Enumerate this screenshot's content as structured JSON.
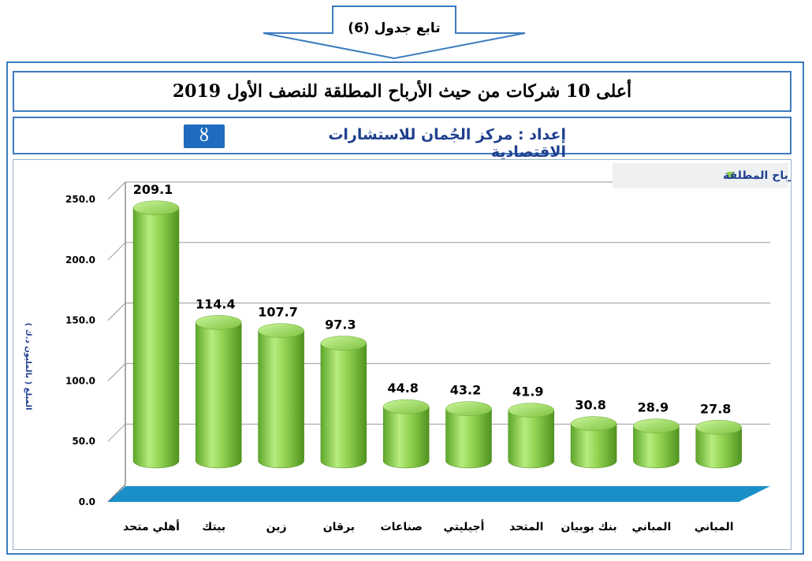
{
  "banner": {
    "label": "تابع جدول (6)"
  },
  "title": "أعلى 10 شركات من حيث الأرباح المطلقة للنصف الأول 2019",
  "subtitle": "إعداد : مركز الجُمان للاستشارات الاقتصادية",
  "logo_glyph": "ȣ",
  "colors": {
    "frame": "#3b7bbf",
    "bar": "#8fd14f",
    "floor": "#1a8fc7",
    "subtitle": "#1f3f8f"
  },
  "chart_data": {
    "type": "bar",
    "categories": [
      "أهلي متحد",
      "بيتك",
      "زين",
      "برقان",
      "صناعات",
      "أجيليتي",
      "المتحد",
      "بنك بوبيان",
      "المباني",
      "المباني"
    ],
    "series": [
      {
        "name": "الأرباح المطلقة",
        "values": [
          209.1,
          114.4,
          107.7,
          97.3,
          44.8,
          43.2,
          41.9,
          30.8,
          28.9,
          27.8
        ]
      }
    ],
    "data_labels": [
      "209.1",
      "114.4",
      "107.7",
      "97.3",
      "44.8",
      "43.2",
      "41.9",
      "30.8",
      "28.9",
      "27.8"
    ],
    "yticks": [
      "0.0",
      "50.0",
      "100.0",
      "150.0",
      "200.0",
      "250.0"
    ],
    "ylim": [
      0,
      250
    ],
    "ylabel": "المبلغ ( بالمليون د.ك )",
    "legend_position": "top-right",
    "grid": true
  }
}
